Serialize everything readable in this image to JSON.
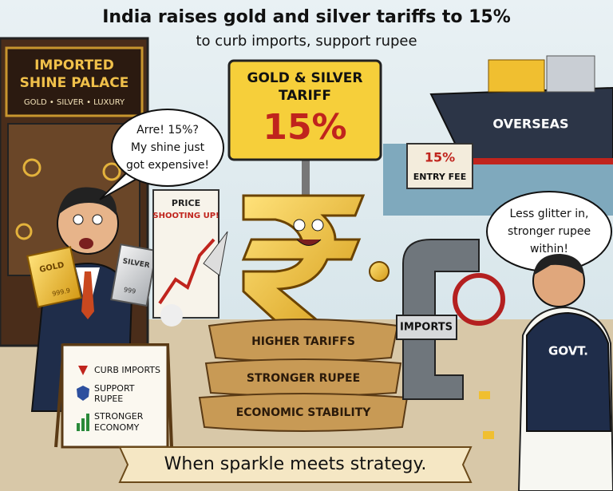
{
  "header": {
    "title": "India raises gold and silver tariffs to 15%",
    "subtitle": "to curb imports, support rupee"
  },
  "shop_sign": {
    "lines": [
      "IMPORTED",
      "SHINE PALACE"
    ],
    "tagline": "GOLD • SILVER • LUXURY"
  },
  "bubble_left": {
    "lines": [
      "Arre! 15%?",
      "My shine just",
      "got expensive!"
    ]
  },
  "gold_bar": {
    "label": "GOLD",
    "purity": "999.9"
  },
  "silver_bar": {
    "label": "SILVER",
    "purity": "999"
  },
  "price_sign": {
    "lines": [
      "PRICE",
      "SHOOTING UP!"
    ]
  },
  "tariff_sign": {
    "lines": [
      "GOLD & SILVER",
      "TARIFF"
    ],
    "rate": "15%"
  },
  "ship": {
    "label": "OVERSEAS"
  },
  "entry_sign": {
    "rate": "15%",
    "label": "ENTRY FEE"
  },
  "bubble_right": {
    "lines": [
      "Less glitter in,",
      "stronger rupee",
      "within!"
    ]
  },
  "pipe": {
    "label": "IMPORTS"
  },
  "govt": {
    "label": "GOVT."
  },
  "sacks": [
    "HIGHER TARIFFS",
    "STRONGER RUPEE",
    "ECONOMIC STABILITY"
  ],
  "board": {
    "items": [
      [
        "CURB IMPORTS"
      ],
      [
        "SUPPORT",
        "RUPEE"
      ],
      [
        "STRONGER",
        "ECONOMY"
      ]
    ]
  },
  "banner": {
    "text": "When sparkle meets strategy."
  }
}
